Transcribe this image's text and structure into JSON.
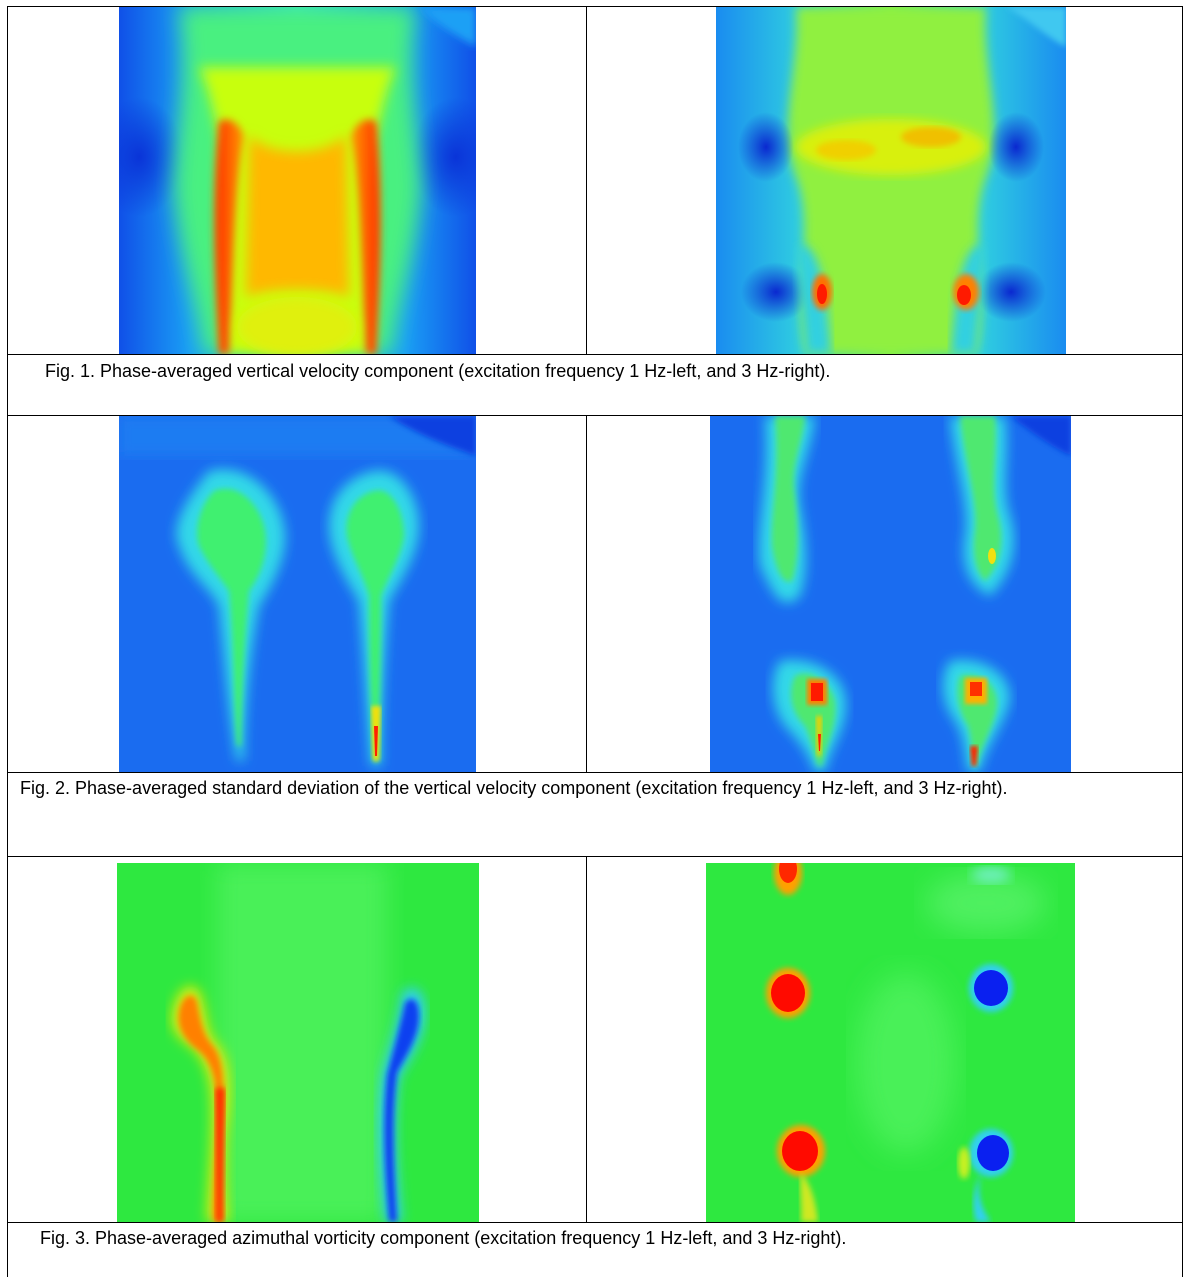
{
  "figures": [
    {
      "caption": "Fig. 1. Phase-averaged vertical velocity component (excitation frequency 1 Hz-left, and 3 Hz-right).",
      "panels": [
        {
          "label": "excitation frequency 1 Hz",
          "colormap": "jet"
        },
        {
          "label": "excitation frequency 3 Hz",
          "colormap": "jet"
        }
      ]
    },
    {
      "caption": "Fig. 2. Phase-averaged standard deviation of the vertical velocity component (excitation frequency 1 Hz-left, and 3 Hz-right).",
      "panels": [
        {
          "label": "excitation frequency 1 Hz",
          "colormap": "jet"
        },
        {
          "label": "excitation frequency 3 Hz",
          "colormap": "jet"
        }
      ]
    },
    {
      "caption": "Fig. 3. Phase-averaged azimuthal vorticity component (excitation frequency 1 Hz-left, and 3 Hz-right).",
      "panels": [
        {
          "label": "excitation frequency 1 Hz",
          "colormap": "jet"
        },
        {
          "label": "excitation frequency 3 Hz",
          "colormap": "jet"
        }
      ]
    }
  ]
}
